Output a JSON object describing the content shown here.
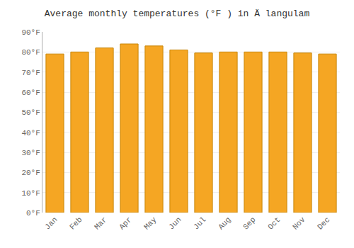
{
  "chart_data": {
    "type": "bar",
    "title": "Average monthly temperatures (°F ) in Ä langulam",
    "categories": [
      "Jan",
      "Feb",
      "Mar",
      "Apr",
      "May",
      "Jun",
      "Jul",
      "Aug",
      "Sep",
      "Oct",
      "Nov",
      "Dec"
    ],
    "values": [
      79,
      80,
      82,
      84,
      83,
      81,
      79.5,
      80,
      80,
      80,
      79.5,
      79
    ],
    "color": "#F5A623",
    "ylim": [
      0,
      90
    ],
    "yticks": [
      {
        "value": 0,
        "label": "0°F"
      },
      {
        "value": 10,
        "label": "10°F"
      },
      {
        "value": 20,
        "label": "20°F"
      },
      {
        "value": 30,
        "label": "30°F"
      },
      {
        "value": 40,
        "label": "40°F"
      },
      {
        "value": 50,
        "label": "50°F"
      },
      {
        "value": 60,
        "label": "60°F"
      },
      {
        "value": 70,
        "label": "70°F"
      },
      {
        "value": 80,
        "label": "80°F"
      },
      {
        "value": 90,
        "label": "90°F"
      }
    ],
    "grid": true
  }
}
